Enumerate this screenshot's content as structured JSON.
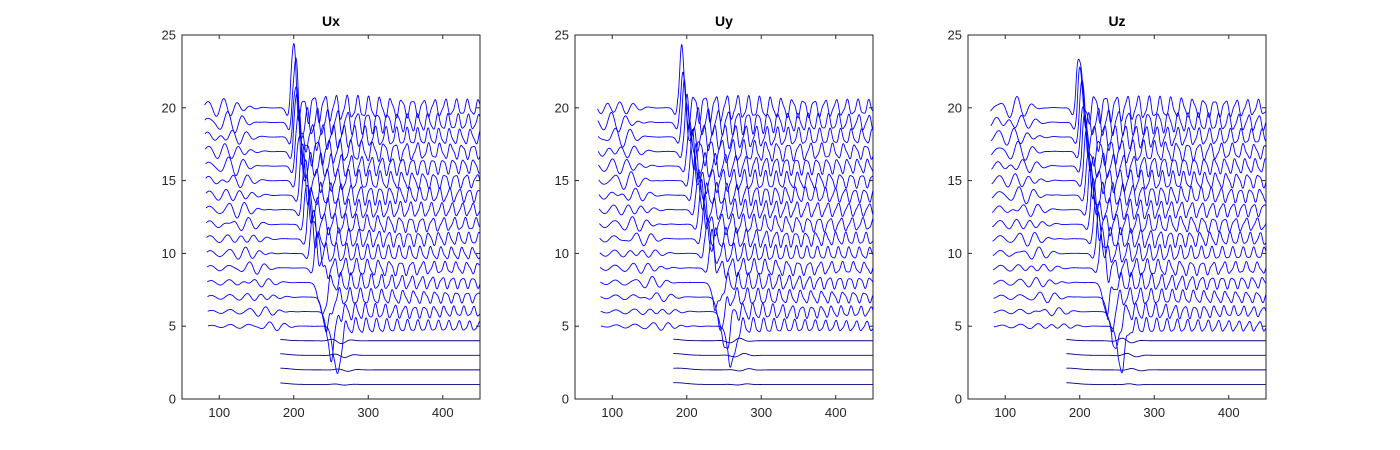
{
  "chart_data": [
    {
      "type": "line",
      "title": "Ux",
      "xlabel": "",
      "ylabel": "",
      "xlim": [
        50,
        450
      ],
      "ylim": [
        0,
        25
      ],
      "xticks": [
        100,
        200,
        300,
        400
      ],
      "yticks": [
        0,
        5,
        10,
        15,
        20,
        25
      ],
      "grid": false,
      "line_color": "#0000ff",
      "base_color": "#00008b",
      "series_description": "20 stacked seismic traces, baseline offsets 1 through 20",
      "offsets": [
        1,
        2,
        3,
        4,
        5,
        6,
        7,
        8,
        9,
        10,
        11,
        12,
        13,
        14,
        15,
        16,
        17,
        18,
        19,
        20
      ],
      "trace_start_x": [
        185,
        185,
        182,
        182,
        182,
        182,
        184,
        186,
        188,
        190,
        192,
        194,
        196,
        198,
        200,
        202,
        203,
        204,
        205,
        205
      ],
      "body_wave_x": [
        265,
        270,
        266,
        262,
        258,
        250,
        244,
        238,
        232,
        226,
        222,
        218,
        215,
        212,
        208,
        206,
        204,
        203,
        202,
        200
      ],
      "max_amplitude": 4.8,
      "x_range": [
        80,
        450
      ]
    },
    {
      "type": "line",
      "title": "Uy",
      "xlabel": "",
      "ylabel": "",
      "xlim": [
        50,
        450
      ],
      "ylim": [
        0,
        25
      ],
      "xticks": [
        100,
        200,
        300,
        400
      ],
      "yticks": [
        0,
        5,
        10,
        15,
        20,
        25
      ],
      "grid": false,
      "line_color": "#0000ff",
      "base_color": "#00008b",
      "series_description": "20 stacked seismic traces, baseline offsets 1 through 20",
      "offsets": [
        1,
        2,
        3,
        4,
        5,
        6,
        7,
        8,
        9,
        10,
        11,
        12,
        13,
        14,
        15,
        16,
        17,
        18,
        19,
        20
      ],
      "trace_start_x": [
        185,
        185,
        182,
        182,
        182,
        182,
        184,
        186,
        188,
        190,
        192,
        194,
        196,
        198,
        200,
        202,
        203,
        204,
        205,
        205
      ],
      "body_wave_x": [
        275,
        278,
        272,
        266,
        260,
        252,
        246,
        240,
        234,
        228,
        224,
        220,
        216,
        212,
        208,
        204,
        200,
        197,
        195,
        193
      ],
      "max_amplitude": 4.2,
      "x_range": [
        80,
        450
      ]
    },
    {
      "type": "line",
      "title": "Uz",
      "xlabel": "",
      "ylabel": "",
      "xlim": [
        50,
        450
      ],
      "ylim": [
        0,
        25
      ],
      "xticks": [
        100,
        200,
        300,
        400
      ],
      "yticks": [
        0,
        5,
        10,
        15,
        20,
        25
      ],
      "grid": false,
      "line_color": "#0000ff",
      "base_color": "#00008b",
      "series_description": "20 stacked seismic traces, baseline offsets 1 through 20",
      "offsets": [
        1,
        2,
        3,
        4,
        5,
        6,
        7,
        8,
        9,
        10,
        11,
        12,
        13,
        14,
        15,
        16,
        17,
        18,
        19,
        20
      ],
      "trace_start_x": [
        185,
        185,
        182,
        182,
        182,
        182,
        184,
        186,
        188,
        190,
        192,
        194,
        196,
        198,
        200,
        202,
        203,
        204,
        205,
        205
      ],
      "body_wave_x": [
        270,
        274,
        268,
        262,
        256,
        248,
        242,
        236,
        230,
        226,
        222,
        218,
        215,
        212,
        209,
        207,
        205,
        203,
        201,
        199
      ],
      "max_amplitude": 4.4,
      "x_range": [
        80,
        450
      ]
    }
  ]
}
